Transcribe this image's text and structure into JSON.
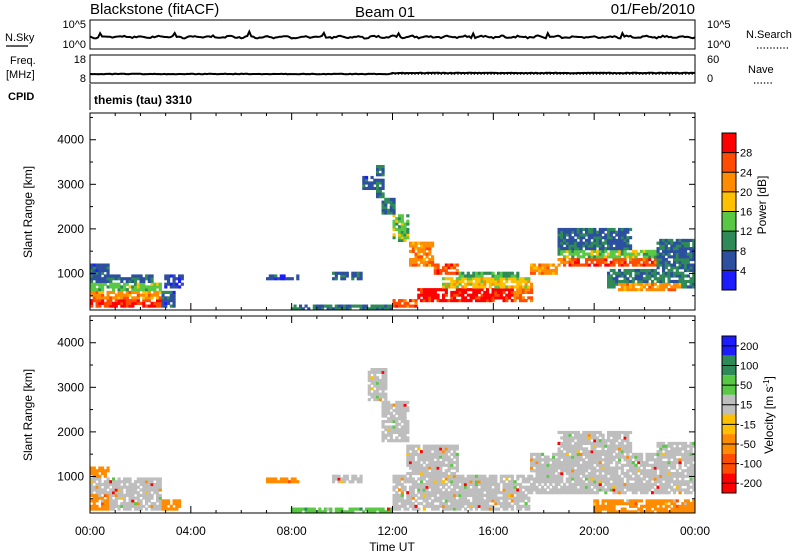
{
  "header": {
    "station": "Blackstone (fitACF)",
    "beam": "Beam 01",
    "date": "01/Feb/2010"
  },
  "noise_panel": {
    "left_label": "N.Sky",
    "right_label": "N.Search",
    "left_ticks": [
      "10^5",
      "10^0"
    ],
    "right_ticks": [
      "10^5",
      "10^0"
    ]
  },
  "freq_panel": {
    "left_label_1": "Freq.",
    "left_label_2": "[MHz]",
    "right_label": "Nave",
    "left_ticks": [
      "18",
      "8"
    ],
    "right_ticks": [
      "60",
      "0"
    ]
  },
  "cpid": {
    "label": "CPID",
    "text": "themis (tau) 3310"
  },
  "time_axis": {
    "xlabel": "Time UT",
    "ticks": [
      "00:00",
      "04:00",
      "08:00",
      "12:00",
      "16:00",
      "20:00",
      "00:00"
    ]
  },
  "chart_data": [
    {
      "type": "heatmap",
      "panel": "power",
      "title": "",
      "xlabel": "Time UT",
      "ylabel": "Slant Range [km]",
      "x_range_hours": [
        0,
        24
      ],
      "ylim": [
        180,
        4600
      ],
      "yticks": [
        1000,
        2000,
        3000,
        4000
      ],
      "colorbar": {
        "label": "Power [dB]",
        "ticks": [
          4,
          8,
          12,
          16,
          20,
          24,
          28
        ],
        "bins": [
          {
            "min": 0,
            "max": 4,
            "color": "#1c1cff"
          },
          {
            "min": 4,
            "max": 8,
            "color": "#2c4fa0"
          },
          {
            "min": 8,
            "max": 12,
            "color": "#2e8b57"
          },
          {
            "min": 12,
            "max": 16,
            "color": "#58c845"
          },
          {
            "min": 16,
            "max": 20,
            "color": "#ffc000"
          },
          {
            "min": 20,
            "max": 24,
            "color": "#ff8c00"
          },
          {
            "min": 24,
            "max": 28,
            "color": "#ff4c00"
          },
          {
            "min": 28,
            "max": 32,
            "color": "#ff0000"
          }
        ]
      },
      "echo_regions": [
        {
          "t0": 0.0,
          "t1": 2.8,
          "r0": 220,
          "r1": 420,
          "level": 28
        },
        {
          "t0": 0.0,
          "t1": 2.8,
          "r0": 420,
          "r1": 600,
          "level": 22
        },
        {
          "t0": 0.0,
          "t1": 2.8,
          "r0": 600,
          "r1": 780,
          "level": 14
        },
        {
          "t0": 0.0,
          "t1": 2.5,
          "r0": 780,
          "r1": 1000,
          "level": 7
        },
        {
          "t0": 0.0,
          "t1": 0.8,
          "r0": 1000,
          "r1": 1200,
          "level": 6
        },
        {
          "t0": 2.8,
          "t1": 3.4,
          "r0": 220,
          "r1": 600,
          "level": 6
        },
        {
          "t0": 3.0,
          "t1": 3.7,
          "r0": 650,
          "r1": 1000,
          "level": 5
        },
        {
          "t0": 7.0,
          "t1": 8.3,
          "r0": 850,
          "r1": 950,
          "level": 6
        },
        {
          "t0": 9.6,
          "t1": 10.8,
          "r0": 880,
          "r1": 1020,
          "level": 7
        },
        {
          "t0": 10.8,
          "t1": 11.4,
          "r0": 2900,
          "r1": 3200,
          "level": 6
        },
        {
          "t0": 11.3,
          "t1": 11.7,
          "r0": 2700,
          "r1": 3450,
          "level": 8
        },
        {
          "t0": 11.6,
          "t1": 12.1,
          "r0": 2300,
          "r1": 2700,
          "level": 9
        },
        {
          "t0": 12.0,
          "t1": 12.7,
          "r0": 1700,
          "r1": 2300,
          "level": 14
        },
        {
          "t0": 12.7,
          "t1": 13.6,
          "r0": 1150,
          "r1": 1700,
          "level": 22
        },
        {
          "t0": 13.6,
          "t1": 14.6,
          "r0": 950,
          "r1": 1200,
          "level": 26
        },
        {
          "t0": 12.0,
          "t1": 13.0,
          "r0": 220,
          "r1": 420,
          "level": 26
        },
        {
          "t0": 13.0,
          "t1": 16.8,
          "r0": 350,
          "r1": 650,
          "level": 30
        },
        {
          "t0": 16.8,
          "t1": 17.6,
          "r0": 350,
          "r1": 800,
          "level": 24
        },
        {
          "t0": 14.0,
          "t1": 17.5,
          "r0": 650,
          "r1": 900,
          "level": 18
        },
        {
          "t0": 14.6,
          "t1": 17.0,
          "r0": 900,
          "r1": 1050,
          "level": 12
        },
        {
          "t0": 17.5,
          "t1": 18.5,
          "r0": 950,
          "r1": 1250,
          "level": 22
        },
        {
          "t0": 18.5,
          "t1": 22.5,
          "r0": 1150,
          "r1": 1350,
          "level": 26
        },
        {
          "t0": 18.5,
          "t1": 22.5,
          "r0": 1350,
          "r1": 1550,
          "level": 14
        },
        {
          "t0": 18.5,
          "t1": 21.5,
          "r0": 1550,
          "r1": 2000,
          "level": 7
        },
        {
          "t0": 20.5,
          "t1": 24.0,
          "r0": 650,
          "r1": 1100,
          "level": 9
        },
        {
          "t0": 21.0,
          "t1": 23.5,
          "r0": 600,
          "r1": 800,
          "level": 22
        },
        {
          "t0": 22.5,
          "t1": 24.0,
          "r0": 1100,
          "r1": 1750,
          "level": 8
        },
        {
          "t0": 8.0,
          "t1": 12.0,
          "r0": 180,
          "r1": 300,
          "level": 9
        }
      ]
    },
    {
      "type": "heatmap",
      "panel": "velocity",
      "title": "",
      "xlabel": "Time UT",
      "ylabel": "Slant Range [km]",
      "x_range_hours": [
        0,
        24
      ],
      "ylim": [
        180,
        4600
      ],
      "yticks": [
        1000,
        2000,
        3000,
        4000
      ],
      "colorbar": {
        "label": "Velocity [m s^-1]",
        "ticks": [
          200,
          100,
          50,
          15,
          -15,
          -50,
          -100,
          -200
        ],
        "bins": [
          {
            "min": 150,
            "max": 250,
            "color": "#1c1cff"
          },
          {
            "min": 75,
            "max": 150,
            "color": "#2e8b57"
          },
          {
            "min": 30,
            "max": 75,
            "color": "#58c845"
          },
          {
            "min": -15,
            "max": 15,
            "color": "#bebebe"
          },
          {
            "min": -30,
            "max": -15,
            "color": "#ffc000"
          },
          {
            "min": -75,
            "max": -30,
            "color": "#ff8c00"
          },
          {
            "min": -150,
            "max": -75,
            "color": "#ff4c00"
          },
          {
            "min": -250,
            "max": -150,
            "color": "#ff0000"
          }
        ]
      },
      "echo_regions": [
        {
          "t0": 0.0,
          "t1": 2.8,
          "r0": 220,
          "r1": 1000,
          "level": 0
        },
        {
          "t0": 0.0,
          "t1": 0.8,
          "r0": 1000,
          "r1": 1200,
          "level": -40
        },
        {
          "t0": 0.0,
          "t1": 0.8,
          "r0": 220,
          "r1": 600,
          "level": -40
        },
        {
          "t0": 2.8,
          "t1": 3.6,
          "r0": 220,
          "r1": 500,
          "level": -40
        },
        {
          "t0": 7.0,
          "t1": 8.3,
          "r0": 850,
          "r1": 950,
          "level": -40
        },
        {
          "t0": 9.6,
          "t1": 10.8,
          "r0": 880,
          "r1": 1020,
          "level": 0
        },
        {
          "t0": 11.0,
          "t1": 11.8,
          "r0": 2700,
          "r1": 3450,
          "level": 0
        },
        {
          "t0": 11.6,
          "t1": 12.6,
          "r0": 1800,
          "r1": 2700,
          "level": 0
        },
        {
          "t0": 12.6,
          "t1": 14.6,
          "r0": 950,
          "r1": 1700,
          "level": 0
        },
        {
          "t0": 12.0,
          "t1": 17.5,
          "r0": 220,
          "r1": 1050,
          "level": 0
        },
        {
          "t0": 17.5,
          "t1": 24.0,
          "r0": 600,
          "r1": 1550,
          "level": 0
        },
        {
          "t0": 18.5,
          "t1": 21.5,
          "r0": 1550,
          "r1": 2000,
          "level": 0
        },
        {
          "t0": 22.5,
          "t1": 24.0,
          "r0": 1100,
          "r1": 1750,
          "level": 0
        },
        {
          "t0": 8.0,
          "t1": 12.0,
          "r0": 180,
          "r1": 300,
          "level": 40
        },
        {
          "t0": 20.0,
          "t1": 24.0,
          "r0": 200,
          "r1": 500,
          "level": -40
        }
      ]
    }
  ]
}
